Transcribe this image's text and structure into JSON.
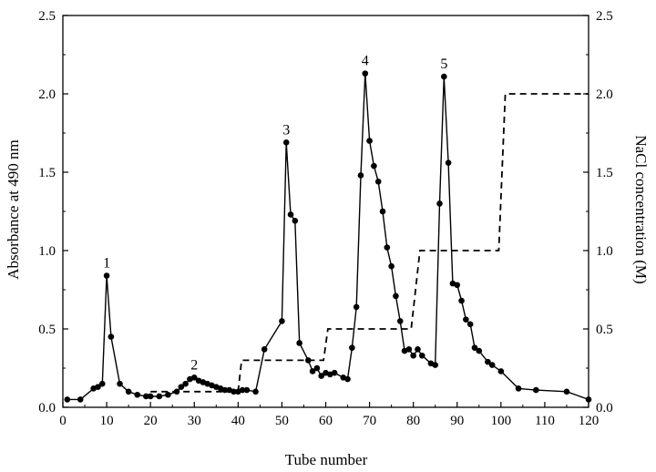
{
  "chart_data": {
    "type": "line",
    "xlabel": "Tube number",
    "ylabel": "Absorbance at 490 nm",
    "y2label": "NaCl concentration (M)",
    "xlim": [
      0,
      120
    ],
    "ylim": [
      0,
      2.5
    ],
    "y2lim": [
      0,
      2.5
    ],
    "x_ticks": [
      0,
      10,
      20,
      30,
      40,
      50,
      60,
      70,
      80,
      90,
      100,
      110,
      120
    ],
    "y_ticks": [
      0.0,
      0.5,
      1.0,
      1.5,
      2.0,
      2.5
    ],
    "y_tick_labels": [
      "0.0",
      "0.5",
      "1.0",
      "1.5",
      "2.0",
      "2.5"
    ],
    "y2_ticks": [
      0.0,
      0.5,
      1.0,
      1.5,
      2.0,
      2.5
    ],
    "y2_tick_labels": [
      "0.0",
      "0.5",
      "1.0",
      "1.5",
      "2.0",
      "2.5"
    ],
    "grid": false,
    "series": [
      {
        "style": "solid line with circle markers",
        "axis": "left",
        "x": [
          1,
          4,
          7,
          8,
          9,
          10,
          11,
          13,
          15,
          17,
          19,
          20,
          22,
          24,
          26,
          27,
          28,
          29,
          30,
          31,
          32,
          33,
          34,
          35,
          36,
          37,
          38,
          39,
          40,
          41,
          42,
          44,
          46,
          50,
          51,
          52,
          53,
          54,
          56,
          57,
          58,
          59,
          60,
          61,
          62,
          64,
          65,
          66,
          67,
          68,
          69,
          70,
          71,
          72,
          73,
          74,
          75,
          76,
          77,
          78,
          79,
          80,
          81,
          82,
          84,
          85,
          86,
          87,
          88,
          89,
          90,
          91,
          92,
          93,
          94,
          95,
          97,
          98,
          100,
          104,
          108,
          115,
          120
        ],
        "y": [
          0.05,
          0.05,
          0.12,
          0.13,
          0.15,
          0.84,
          0.45,
          0.15,
          0.1,
          0.08,
          0.07,
          0.07,
          0.07,
          0.08,
          0.1,
          0.13,
          0.15,
          0.18,
          0.19,
          0.17,
          0.16,
          0.15,
          0.14,
          0.13,
          0.12,
          0.11,
          0.11,
          0.1,
          0.1,
          0.11,
          0.11,
          0.1,
          0.37,
          0.55,
          1.69,
          1.23,
          1.19,
          0.41,
          0.3,
          0.23,
          0.25,
          0.2,
          0.22,
          0.21,
          0.22,
          0.19,
          0.18,
          0.38,
          0.64,
          1.48,
          2.13,
          1.7,
          1.54,
          1.44,
          1.25,
          1.02,
          0.9,
          0.71,
          0.55,
          0.36,
          0.37,
          0.33,
          0.37,
          0.33,
          0.28,
          0.27,
          1.3,
          2.11,
          1.56,
          0.79,
          0.78,
          0.68,
          0.56,
          0.53,
          0.38,
          0.36,
          0.29,
          0.27,
          0.23,
          0.12,
          0.11,
          0.1,
          0.05
        ]
      },
      {
        "style": "dashed step line",
        "axis": "right",
        "x": [
          20,
          40,
          40.8,
          59.5,
          60.5,
          79.5,
          81.5,
          99.5,
          101,
          120
        ],
        "y": [
          0.1,
          0.1,
          0.3,
          0.3,
          0.5,
          0.5,
          1.0,
          1.0,
          2.0,
          2.0
        ]
      }
    ],
    "annotations": [
      {
        "text": "1",
        "x": 10,
        "y": 0.84
      },
      {
        "text": "2",
        "x": 30,
        "y": 0.19
      },
      {
        "text": "3",
        "x": 51,
        "y": 1.69
      },
      {
        "text": "4",
        "x": 69,
        "y": 2.13
      },
      {
        "text": "5",
        "x": 87,
        "y": 2.11
      }
    ],
    "colors": {
      "line": "#000000",
      "marker": "#000000",
      "background": "#ffffff"
    }
  }
}
